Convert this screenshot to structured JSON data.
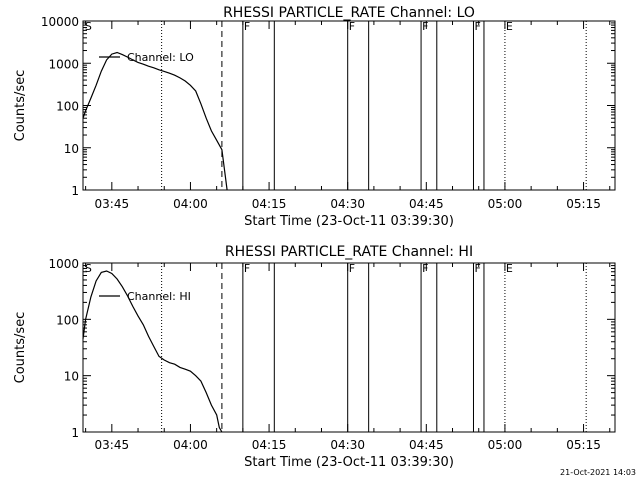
{
  "footer": {
    "timestamp": "21-Oct-2021 14:03"
  },
  "chart_data": [
    {
      "type": "line",
      "title": "RHESSI PARTICLE_RATE Channel: LO",
      "xlabel": "Start Time (23-Oct-11 03:39:30)",
      "ylabel": "Counts/sec",
      "yscale": "log",
      "xlim": [
        "03:39:30",
        "05:21:00"
      ],
      "ylim": [
        1,
        10000
      ],
      "x_ticks": [
        "03:45",
        "04:00",
        "04:15",
        "04:30",
        "04:45",
        "05:00",
        "05:15"
      ],
      "y_ticks": [
        "1",
        "10",
        "100",
        "1000",
        "10000"
      ],
      "legend": {
        "placement": "top-left"
      },
      "series": [
        {
          "name": "Channel: LO",
          "x": [
            "03:39:30",
            "03:40:00",
            "03:41:00",
            "03:42:00",
            "03:43:00",
            "03:44:00",
            "03:45:00",
            "03:46:00",
            "03:47:00",
            "03:48:00",
            "03:49:00",
            "03:50:00",
            "03:51:00",
            "03:52:00",
            "03:53:00",
            "03:54:00",
            "03:55:00",
            "03:56:00",
            "03:57:00",
            "03:58:00",
            "03:59:00",
            "04:00:00",
            "04:01:00",
            "04:02:00",
            "04:03:00",
            "04:04:00",
            "04:05:00",
            "04:06:00",
            "04:06:30",
            "04:07:00"
          ],
          "values": [
            50,
            75,
            150,
            300,
            650,
            1200,
            1650,
            1800,
            1600,
            1400,
            1200,
            1050,
            950,
            850,
            780,
            700,
            640,
            580,
            520,
            450,
            380,
            300,
            220,
            110,
            50,
            25,
            15,
            9,
            3,
            1
          ]
        }
      ],
      "markers": [
        {
          "label": "S",
          "time": "03:39:40",
          "style": "none"
        },
        {
          "label": "",
          "time": "03:54:30",
          "style": "dotted"
        },
        {
          "label": "",
          "time": "04:06:00",
          "style": "dashed"
        },
        {
          "label": "F",
          "time": "04:10:00",
          "style": "solid"
        },
        {
          "label": "",
          "time": "04:16:00",
          "style": "solid"
        },
        {
          "label": "F",
          "time": "04:30:00",
          "style": "solid"
        },
        {
          "label": "",
          "time": "04:34:00",
          "style": "solid"
        },
        {
          "label": "F",
          "time": "04:44:00",
          "style": "solid"
        },
        {
          "label": "",
          "time": "04:47:00",
          "style": "solid"
        },
        {
          "label": "F",
          "time": "04:54:00",
          "style": "solid"
        },
        {
          "label": "",
          "time": "04:56:00",
          "style": "solid"
        },
        {
          "label": "E",
          "time": "05:00:00",
          "style": "dotted"
        },
        {
          "label": "",
          "time": "05:15:30",
          "style": "dotted"
        }
      ]
    },
    {
      "type": "line",
      "title": "RHESSI PARTICLE_RATE Channel: HI",
      "xlabel": "Start Time (23-Oct-11 03:39:30)",
      "ylabel": "Counts/sec",
      "yscale": "log",
      "xlim": [
        "03:39:30",
        "05:21:00"
      ],
      "ylim": [
        1,
        1000
      ],
      "x_ticks": [
        "03:45",
        "04:00",
        "04:15",
        "04:30",
        "04:45",
        "05:00",
        "05:15"
      ],
      "y_ticks": [
        "1",
        "10",
        "100",
        "1000"
      ],
      "legend": {
        "placement": "top-left"
      },
      "series": [
        {
          "name": "Channel: HI",
          "x": [
            "03:39:30",
            "03:40:00",
            "03:41:00",
            "03:42:00",
            "03:43:00",
            "03:44:00",
            "03:45:00",
            "03:46:00",
            "03:47:00",
            "03:48:00",
            "03:49:00",
            "03:50:00",
            "03:51:00",
            "03:52:00",
            "03:53:00",
            "03:54:00",
            "03:55:00",
            "03:56:00",
            "03:57:00",
            "03:58:00",
            "03:59:00",
            "04:00:00",
            "04:01:00",
            "04:02:00",
            "04:03:00",
            "04:04:00",
            "04:05:00",
            "04:05:30",
            "04:06:00"
          ],
          "values": [
            45,
            100,
            250,
            480,
            680,
            720,
            650,
            520,
            380,
            260,
            170,
            115,
            80,
            50,
            33,
            22,
            19,
            17,
            16,
            14,
            13,
            12,
            10,
            8,
            5,
            3,
            2,
            1.2,
            1
          ]
        }
      ],
      "markers": [
        {
          "label": "S",
          "time": "03:39:40",
          "style": "none"
        },
        {
          "label": "",
          "time": "03:54:30",
          "style": "dotted"
        },
        {
          "label": "",
          "time": "04:06:00",
          "style": "dashed"
        },
        {
          "label": "F",
          "time": "04:10:00",
          "style": "solid"
        },
        {
          "label": "",
          "time": "04:16:00",
          "style": "solid"
        },
        {
          "label": "F",
          "time": "04:30:00",
          "style": "solid"
        },
        {
          "label": "",
          "time": "04:34:00",
          "style": "solid"
        },
        {
          "label": "F",
          "time": "04:44:00",
          "style": "solid"
        },
        {
          "label": "",
          "time": "04:47:00",
          "style": "solid"
        },
        {
          "label": "F",
          "time": "04:54:00",
          "style": "solid"
        },
        {
          "label": "",
          "time": "04:56:00",
          "style": "solid"
        },
        {
          "label": "E",
          "time": "05:00:00",
          "style": "dotted"
        },
        {
          "label": "",
          "time": "05:15:30",
          "style": "dotted"
        }
      ]
    }
  ]
}
